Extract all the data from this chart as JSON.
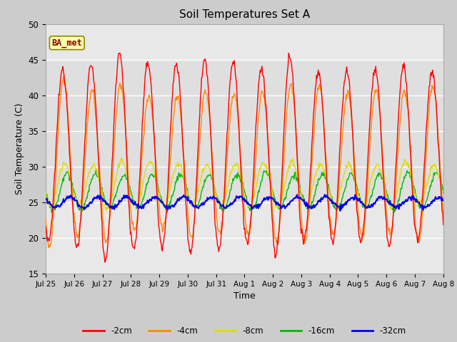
{
  "title": "Soil Temperatures Set A",
  "xlabel": "Time",
  "ylabel": "Soil Temperature (C)",
  "ylim": [
    15,
    50
  ],
  "yticks": [
    15,
    20,
    25,
    30,
    35,
    40,
    45,
    50
  ],
  "label": "BA_met",
  "fig_bg": "#cccccc",
  "plot_bg": "#e8e8e8",
  "plot_bg_inner": "#dcdcdc",
  "colors": {
    "-2cm": "#ff0000",
    "-4cm": "#ff8800",
    "-8cm": "#dddd00",
    "-16cm": "#00bb00",
    "-32cm": "#0000ee"
  },
  "n_days": 14,
  "points_per_day": 48,
  "series": {
    "-2cm": {
      "mean": 31.5,
      "amp": 13.0,
      "phase": 0.35,
      "noise": 0.3
    },
    "-4cm": {
      "mean": 30.5,
      "amp": 10.5,
      "phase": 0.38,
      "noise": 0.3
    },
    "-8cm": {
      "mean": 27.5,
      "amp": 3.0,
      "phase": 0.42,
      "noise": 0.2
    },
    "-16cm": {
      "mean": 26.5,
      "amp": 2.5,
      "phase": 0.5,
      "noise": 0.2
    },
    "-32cm": {
      "mean": 25.0,
      "amp": 0.7,
      "phase": 0.6,
      "noise": 0.15
    }
  }
}
